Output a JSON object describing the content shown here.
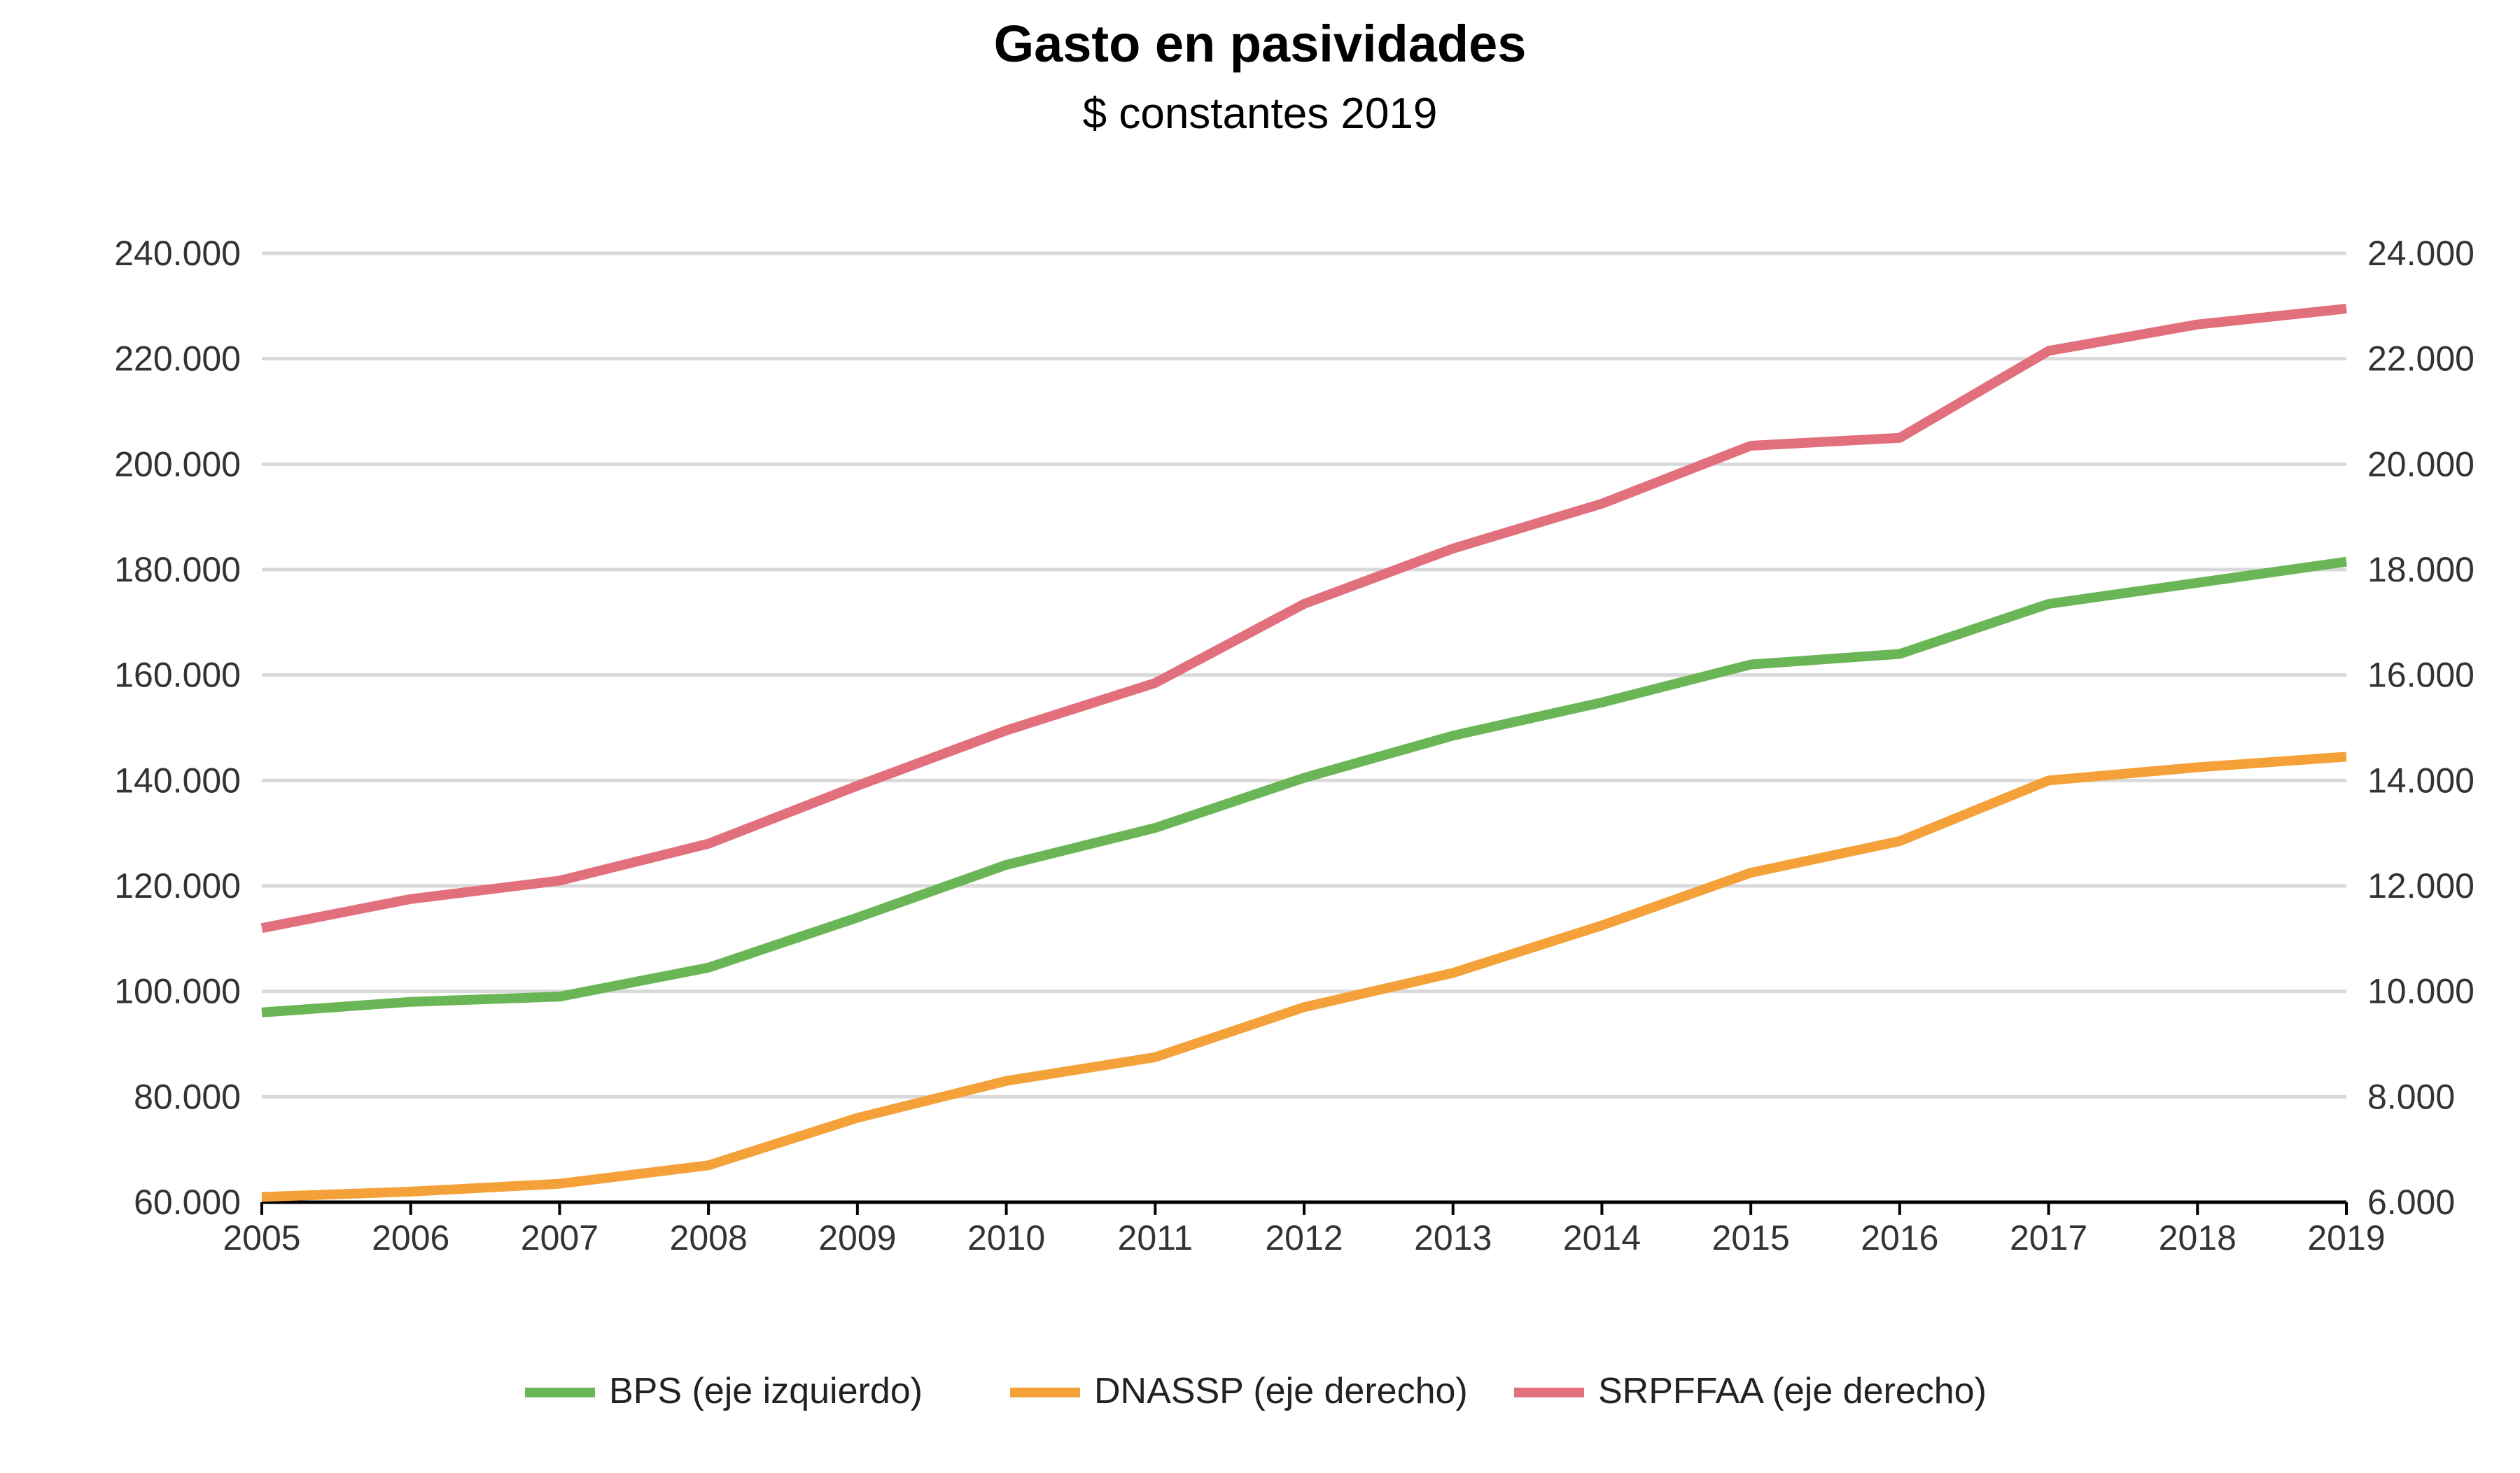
{
  "chart_data": {
    "type": "line",
    "title": "Gasto en pasividades",
    "subtitle": "$ constantes 2019",
    "x": [
      "2005",
      "2006",
      "2007",
      "2008",
      "2009",
      "2010",
      "2011",
      "2012",
      "2013",
      "2014",
      "2015",
      "2016",
      "2017",
      "2018",
      "2019"
    ],
    "y_left": {
      "range": [
        60000,
        240000
      ],
      "ticks": [
        60000,
        80000,
        100000,
        120000,
        140000,
        160000,
        180000,
        200000,
        220000,
        240000
      ],
      "tick_labels": [
        "60.000",
        "80.000",
        "100.000",
        "120.000",
        "140.000",
        "160.000",
        "180.000",
        "200.000",
        "220.000",
        "240.000"
      ]
    },
    "y_right": {
      "range": [
        6000,
        24000
      ],
      "ticks": [
        6000,
        8000,
        10000,
        12000,
        14000,
        16000,
        18000,
        20000,
        22000,
        24000
      ],
      "tick_labels": [
        "6.000",
        "8.000",
        "10.000",
        "12.000",
        "14.000",
        "16.000",
        "18.000",
        "20.000",
        "22.000",
        "24.000"
      ]
    },
    "grid": true,
    "legend_position": "bottom",
    "series": [
      {
        "name": "BPS (eje izquierdo)",
        "axis": "left",
        "color": "#6ab657",
        "values": [
          96000,
          98000,
          99000,
          104500,
          114000,
          124000,
          131000,
          140500,
          148500,
          154800,
          162000,
          164000,
          173500,
          177500,
          181500
        ]
      },
      {
        "name": "DNASSP (eje derecho)",
        "axis": "right",
        "color": "#f5a13a",
        "values": [
          6100,
          6200,
          6350,
          6700,
          7600,
          8300,
          8750,
          9700,
          10350,
          11250,
          12250,
          12850,
          14000,
          14250,
          14450
        ]
      },
      {
        "name": "SRPFFAA (eje derecho)",
        "axis": "right",
        "color": "#e16f7c",
        "values": [
          11200,
          11750,
          12100,
          12800,
          13900,
          14950,
          15850,
          17350,
          18400,
          19250,
          20350,
          20500,
          22150,
          22650,
          22950
        ]
      }
    ]
  }
}
